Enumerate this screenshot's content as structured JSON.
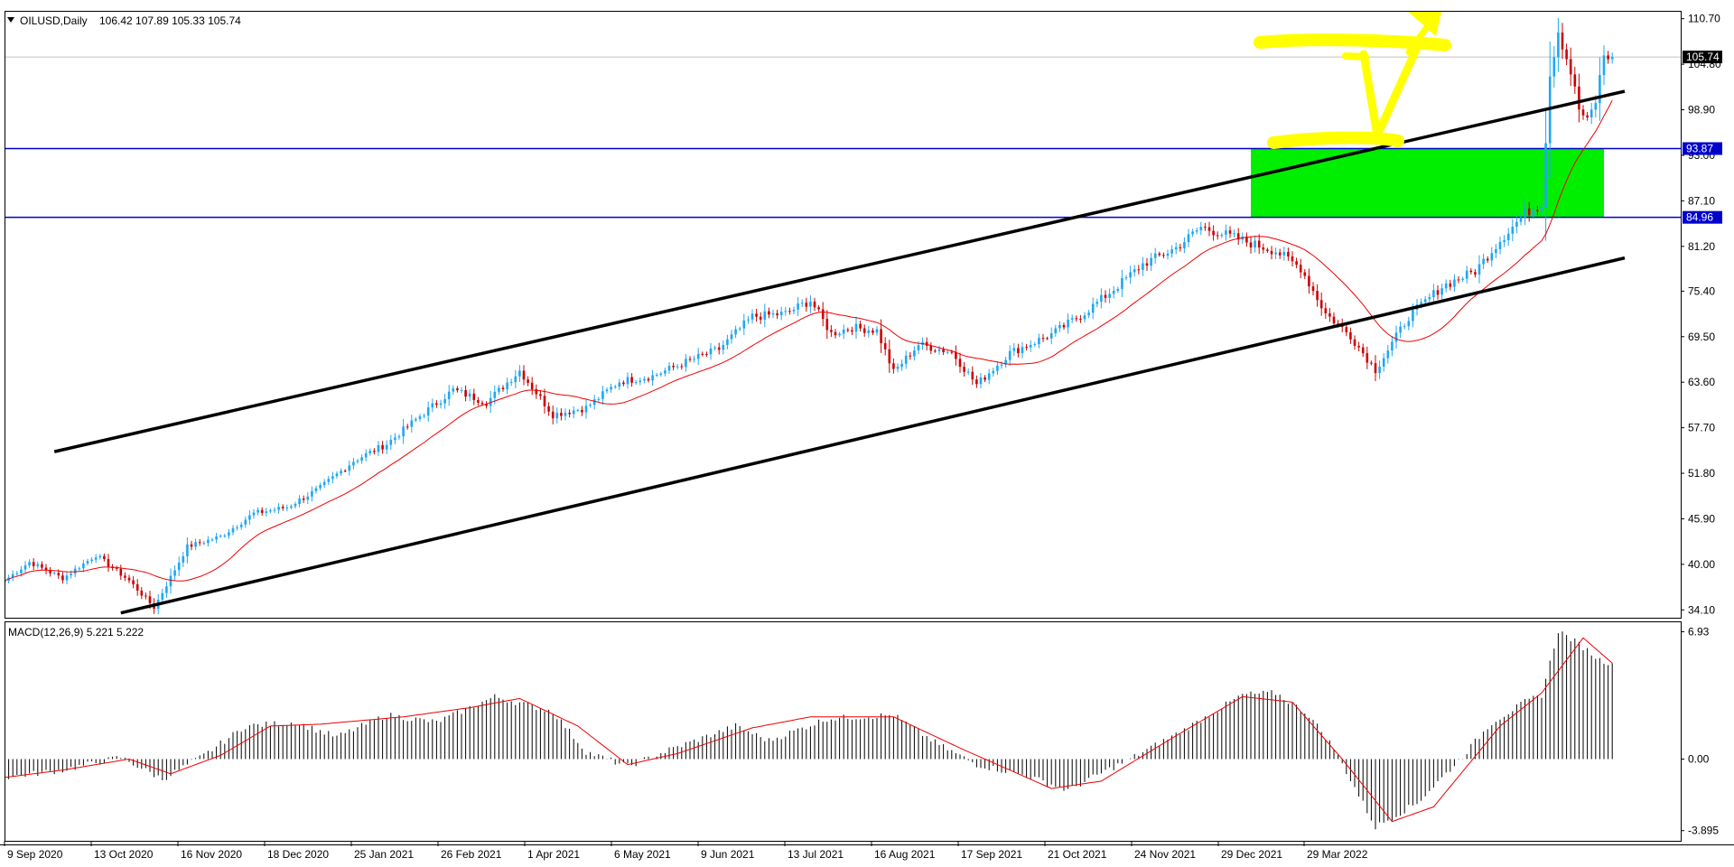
{
  "chart_data": [
    {
      "type": "candlestick",
      "symbol_label": "OILUSD,Daily",
      "ohlc_label": "106.42 107.89 105.33 105.74",
      "last_price": "105.74",
      "y_ticks": [
        "110.70",
        "104.80",
        "98.90",
        "93.00",
        "87.10",
        "81.20",
        "75.40",
        "69.50",
        "63.60",
        "57.70",
        "51.80",
        "45.90",
        "40.00",
        "34.10"
      ],
      "ylim": [
        33.2,
        111.6
      ],
      "x_tick_labels": [
        "9 Sep 2020",
        "13 Oct 2020",
        "16 Nov 2020",
        "18 Dec 2020",
        "25 Jan 2021",
        "26 Feb 2021",
        "1 Apr 2021",
        "6 May 2021",
        "9 Jun 2021",
        "13 Jul 2021",
        "16 Aug 2021",
        "17 Sep 2021",
        "21 Oct 2021",
        "24 Nov 2021",
        "29 Dec 2021",
        "29 Mar 2022"
      ],
      "horizontal_levels": [
        {
          "label": "93.87",
          "value": 93.87,
          "color": "#0000cc"
        },
        {
          "label": "84.96",
          "value": 84.96,
          "color": "#0000cc"
        }
      ],
      "zone": {
        "from_date_index": 300,
        "to_date_index": 385,
        "low": 84.96,
        "high": 93.87,
        "color": "#00ee00"
      },
      "channel_lines": [
        {
          "x1": 12,
          "y1": 54.6,
          "x2": 390,
          "y2": 101.3
        },
        {
          "x1": 28,
          "y1": 33.7,
          "x2": 390,
          "y2": 79.7
        }
      ],
      "close_anchors": [
        [
          0,
          37.9
        ],
        [
          6,
          40.3
        ],
        [
          14,
          38.2
        ],
        [
          22,
          41.2
        ],
        [
          30,
          37.9
        ],
        [
          36,
          34.4
        ],
        [
          44,
          42.3
        ],
        [
          52,
          43.6
        ],
        [
          60,
          46.6
        ],
        [
          68,
          47.4
        ],
        [
          76,
          49.9
        ],
        [
          84,
          53.4
        ],
        [
          92,
          55.6
        ],
        [
          100,
          59.2
        ],
        [
          108,
          62.6
        ],
        [
          116,
          61.0
        ],
        [
          124,
          65.1
        ],
        [
          132,
          59.4
        ],
        [
          140,
          60.3
        ],
        [
          148,
          63.7
        ],
        [
          156,
          64.4
        ],
        [
          164,
          66.2
        ],
        [
          172,
          67.9
        ],
        [
          180,
          72.1
        ],
        [
          188,
          72.5
        ],
        [
          194,
          74.2
        ],
        [
          199,
          69.9
        ],
        [
          204,
          70.7
        ],
        [
          210,
          70.3
        ],
        [
          214,
          64.9
        ],
        [
          220,
          68.5
        ],
        [
          228,
          67.5
        ],
        [
          234,
          63.3
        ],
        [
          242,
          67.4
        ],
        [
          252,
          69.8
        ],
        [
          260,
          72.6
        ],
        [
          268,
          76.1
        ],
        [
          274,
          78.9
        ],
        [
          282,
          81.0
        ],
        [
          288,
          83.7
        ],
        [
          294,
          82.7
        ],
        [
          300,
          81.6
        ],
        [
          306,
          80.6
        ],
        [
          312,
          78.4
        ],
        [
          318,
          72.5
        ],
        [
          324,
          69.6
        ],
        [
          330,
          65.2
        ],
        [
          338,
          72.1
        ],
        [
          346,
          76.0
        ],
        [
          354,
          78.0
        ],
        [
          360,
          82.0
        ],
        [
          366,
          85.5
        ],
        [
          370,
          86.7
        ],
        [
          372,
          103.5
        ],
        [
          374,
          109.2
        ],
        [
          377,
          103.8
        ],
        [
          379,
          99.0
        ],
        [
          381,
          97.3
        ],
        [
          383,
          100.0
        ],
        [
          385,
          106.0
        ],
        [
          387,
          105.74
        ]
      ],
      "ma_period": 20,
      "ma_color": "#ee0000",
      "up_color": "#1ea7f2",
      "down_color": "#cc0000"
    },
    {
      "type": "bar",
      "name": "MACD",
      "label": "MACD(12,26,9) 5.221 5.222",
      "y_ticks": [
        "6.93",
        "0.00",
        "-3.895"
      ],
      "ylim": [
        -4.4,
        7.4
      ],
      "histogram_anchors": [
        [
          0,
          -1.0
        ],
        [
          14,
          -0.6
        ],
        [
          28,
          0.1
        ],
        [
          38,
          -1.1
        ],
        [
          48,
          0.2
        ],
        [
          58,
          1.8
        ],
        [
          70,
          2.0
        ],
        [
          80,
          1.2
        ],
        [
          92,
          2.4
        ],
        [
          104,
          2.0
        ],
        [
          118,
          3.4
        ],
        [
          132,
          2.6
        ],
        [
          140,
          0.4
        ],
        [
          150,
          -0.4
        ],
        [
          160,
          0.5
        ],
        [
          176,
          1.8
        ],
        [
          184,
          1.0
        ],
        [
          198,
          2.2
        ],
        [
          214,
          2.4
        ],
        [
          224,
          0.9
        ],
        [
          234,
          -0.3
        ],
        [
          246,
          -0.9
        ],
        [
          256,
          -1.7
        ],
        [
          262,
          -1.0
        ],
        [
          270,
          -0.1
        ],
        [
          284,
          1.6
        ],
        [
          298,
          3.5
        ],
        [
          306,
          3.6
        ],
        [
          314,
          2.4
        ],
        [
          320,
          0.6
        ],
        [
          330,
          -3.7
        ],
        [
          340,
          -2.4
        ],
        [
          350,
          -0.1
        ],
        [
          358,
          2.0
        ],
        [
          366,
          3.1
        ],
        [
          370,
          3.5
        ],
        [
          374,
          7.0
        ],
        [
          380,
          6.1
        ],
        [
          384,
          5.4
        ],
        [
          387,
          5.221
        ]
      ],
      "signal_anchors": [
        [
          0,
          -1.0
        ],
        [
          14,
          -0.6
        ],
        [
          30,
          0.0
        ],
        [
          40,
          -0.8
        ],
        [
          52,
          0.2
        ],
        [
          64,
          1.8
        ],
        [
          76,
          1.9
        ],
        [
          96,
          2.3
        ],
        [
          112,
          2.8
        ],
        [
          124,
          3.3
        ],
        [
          138,
          1.8
        ],
        [
          150,
          -0.3
        ],
        [
          162,
          0.3
        ],
        [
          180,
          1.7
        ],
        [
          194,
          2.3
        ],
        [
          214,
          2.3
        ],
        [
          230,
          0.6
        ],
        [
          252,
          -1.6
        ],
        [
          264,
          -1.2
        ],
        [
          280,
          1.0
        ],
        [
          298,
          3.4
        ],
        [
          310,
          3.1
        ],
        [
          322,
          0.0
        ],
        [
          334,
          -3.4
        ],
        [
          344,
          -2.6
        ],
        [
          360,
          1.8
        ],
        [
          370,
          3.6
        ],
        [
          380,
          6.6
        ],
        [
          387,
          5.222
        ]
      ],
      "hist_color": "#000000",
      "signal_color": "#ee0000"
    }
  ],
  "annotations": {
    "highlight_color": "#ffff00",
    "handwritten_mark": "yellow roman-numeral V shape with upward arrow"
  }
}
